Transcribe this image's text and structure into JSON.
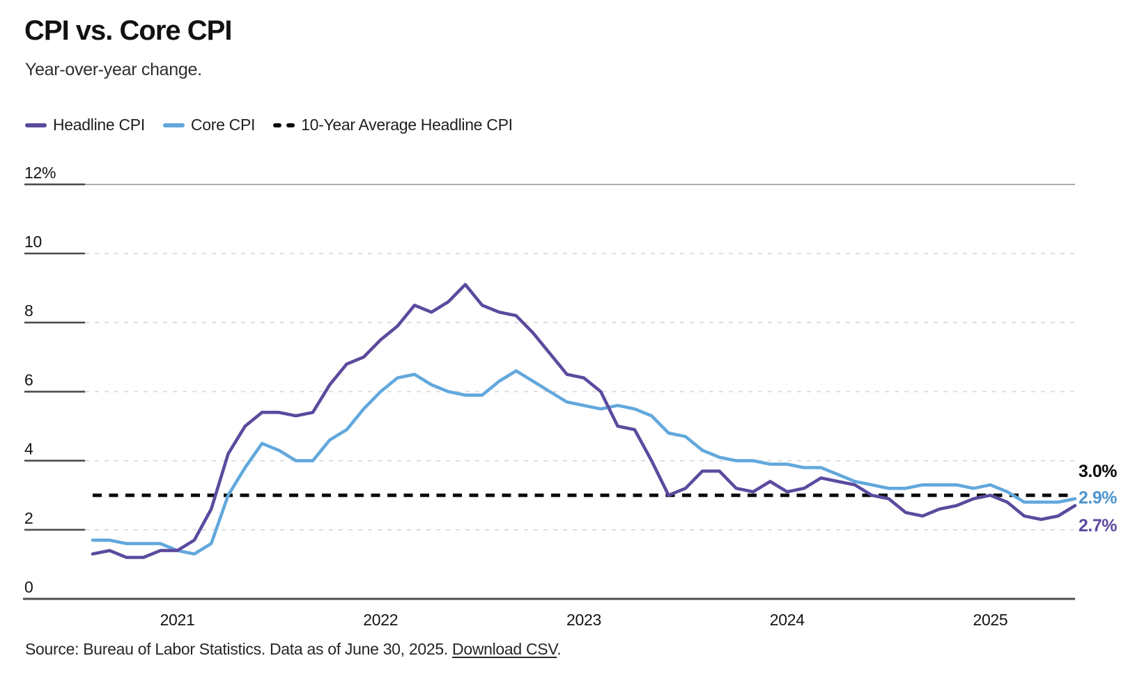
{
  "header": {
    "title": "CPI vs. Core CPI",
    "subtitle": "Year-over-year change."
  },
  "legend": {
    "items": [
      {
        "label": "Headline CPI",
        "color": "#5c4a9e",
        "swatch": "line"
      },
      {
        "label": "Core CPI",
        "color": "#62a8dc",
        "swatch": "line"
      },
      {
        "label": "10-Year Average Headline CPI",
        "color": "#0a0a0a",
        "swatch": "dashes"
      }
    ]
  },
  "chart_data": {
    "type": "line",
    "title": "CPI vs. Core CPI",
    "subtitle": "Year-over-year change.",
    "x_unit": "month",
    "x_monthly_range": [
      "2020-08",
      "2025-06"
    ],
    "x_ticks": [
      {
        "month_index": 5,
        "label": "2021"
      },
      {
        "month_index": 17,
        "label": "2022"
      },
      {
        "month_index": 29,
        "label": "2023"
      },
      {
        "month_index": 41,
        "label": "2024"
      },
      {
        "month_index": 53,
        "label": "2025"
      }
    ],
    "y_ticks": [
      {
        "value": 0,
        "label": "0"
      },
      {
        "value": 2,
        "label": "2"
      },
      {
        "value": 4,
        "label": "4"
      },
      {
        "value": 6,
        "label": "6"
      },
      {
        "value": 8,
        "label": "8"
      },
      {
        "value": 10,
        "label": "10"
      },
      {
        "value": 12,
        "label": "12%"
      }
    ],
    "ylim": [
      0,
      12
    ],
    "grid": "horizontal-dashed",
    "legend_position": "top-left",
    "series": [
      {
        "name": "Headline CPI",
        "color": "#5c4a9e",
        "values": [
          1.3,
          1.4,
          1.2,
          1.2,
          1.4,
          1.4,
          1.7,
          2.6,
          4.2,
          5.0,
          5.4,
          5.4,
          5.3,
          5.4,
          6.2,
          6.8,
          7.0,
          7.5,
          7.9,
          8.5,
          8.3,
          8.6,
          9.1,
          8.5,
          8.3,
          8.2,
          7.7,
          7.1,
          6.5,
          6.4,
          6.0,
          5.0,
          4.9,
          4.0,
          3.0,
          3.2,
          3.7,
          3.7,
          3.2,
          3.1,
          3.4,
          3.1,
          3.2,
          3.5,
          3.4,
          3.3,
          3.0,
          2.9,
          2.5,
          2.4,
          2.6,
          2.7,
          2.9,
          3.0,
          2.8,
          2.4,
          2.3,
          2.4,
          2.7
        ]
      },
      {
        "name": "Core CPI",
        "color": "#62a8dc",
        "values": [
          1.7,
          1.7,
          1.6,
          1.6,
          1.6,
          1.4,
          1.3,
          1.6,
          3.0,
          3.8,
          4.5,
          4.3,
          4.0,
          4.0,
          4.6,
          4.9,
          5.5,
          6.0,
          6.4,
          6.5,
          6.2,
          6.0,
          5.9,
          5.9,
          6.3,
          6.6,
          6.3,
          6.0,
          5.7,
          5.6,
          5.5,
          5.6,
          5.5,
          5.3,
          4.8,
          4.7,
          4.3,
          4.1,
          4.0,
          4.0,
          3.9,
          3.9,
          3.8,
          3.8,
          3.6,
          3.4,
          3.3,
          3.2,
          3.2,
          3.3,
          3.3,
          3.3,
          3.2,
          3.3,
          3.1,
          2.8,
          2.8,
          2.8,
          2.9
        ]
      }
    ],
    "reference_line": {
      "label": "10-Year Average Headline CPI",
      "value": 3.0,
      "color": "#0a0a0a",
      "style": "dashed"
    },
    "end_labels": [
      {
        "text": "3.0%",
        "color": "#0a0a0a"
      },
      {
        "text": "2.9%",
        "color": "#4d94cf"
      },
      {
        "text": "2.7%",
        "color": "#5c4a9e"
      }
    ]
  },
  "footer": {
    "source_text": "Source: Bureau of Labor Statistics. Data as of June 30, 2025.",
    "link_text": "Download CSV",
    "suffix": "."
  }
}
